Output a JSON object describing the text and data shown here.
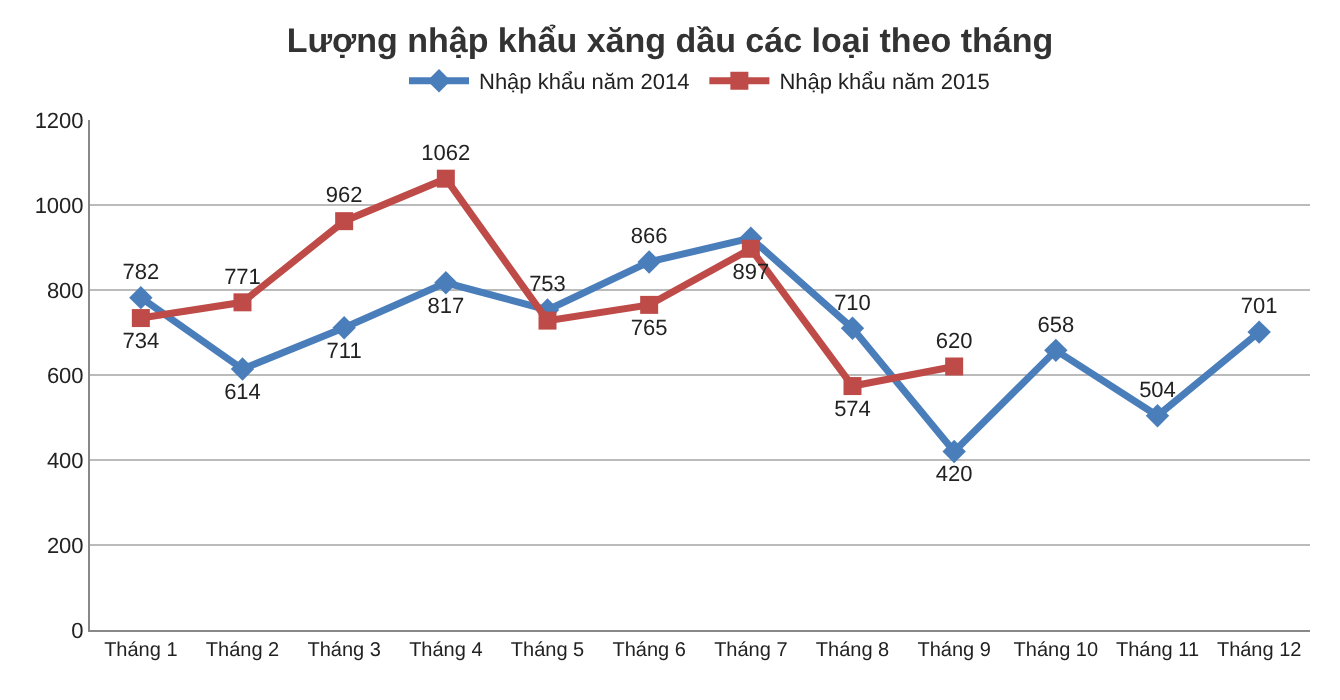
{
  "chart_data": {
    "type": "line",
    "title": "Lượng nhập khẩu xăng dầu các loại theo tháng",
    "categories": [
      "Tháng 1",
      "Tháng 2",
      "Tháng 3",
      "Tháng 4",
      "Tháng 5",
      "Tháng 6",
      "Tháng 7",
      "Tháng 8",
      "Tháng 9",
      "Tháng 10",
      "Tháng 11",
      "Tháng 12"
    ],
    "series": [
      {
        "name": "Nhập khẩu năm 2014",
        "color": "#4a7ebb",
        "marker": "diamond",
        "values": [
          782,
          614,
          711,
          817,
          753,
          866,
          922,
          710,
          420,
          658,
          504,
          701
        ],
        "value_labels": [
          "782",
          "614",
          "711",
          "817",
          "753",
          "866",
          null,
          "710",
          "420",
          "658",
          "504",
          "701"
        ]
      },
      {
        "name": "Nhập khẩu năm 2015",
        "color": "#be4b48",
        "marker": "square",
        "values": [
          734,
          771,
          962,
          1062,
          728,
          765,
          897,
          574,
          620,
          null,
          null,
          null
        ],
        "value_labels": [
          "734",
          "771",
          "962",
          "1062",
          null,
          "765",
          "897",
          "574",
          "620",
          null,
          null,
          null
        ]
      }
    ],
    "ylim": [
      0,
      1200
    ],
    "yticks": [
      0,
      200,
      400,
      600,
      800,
      1000,
      1200
    ],
    "grid": "y",
    "legend": "top"
  }
}
